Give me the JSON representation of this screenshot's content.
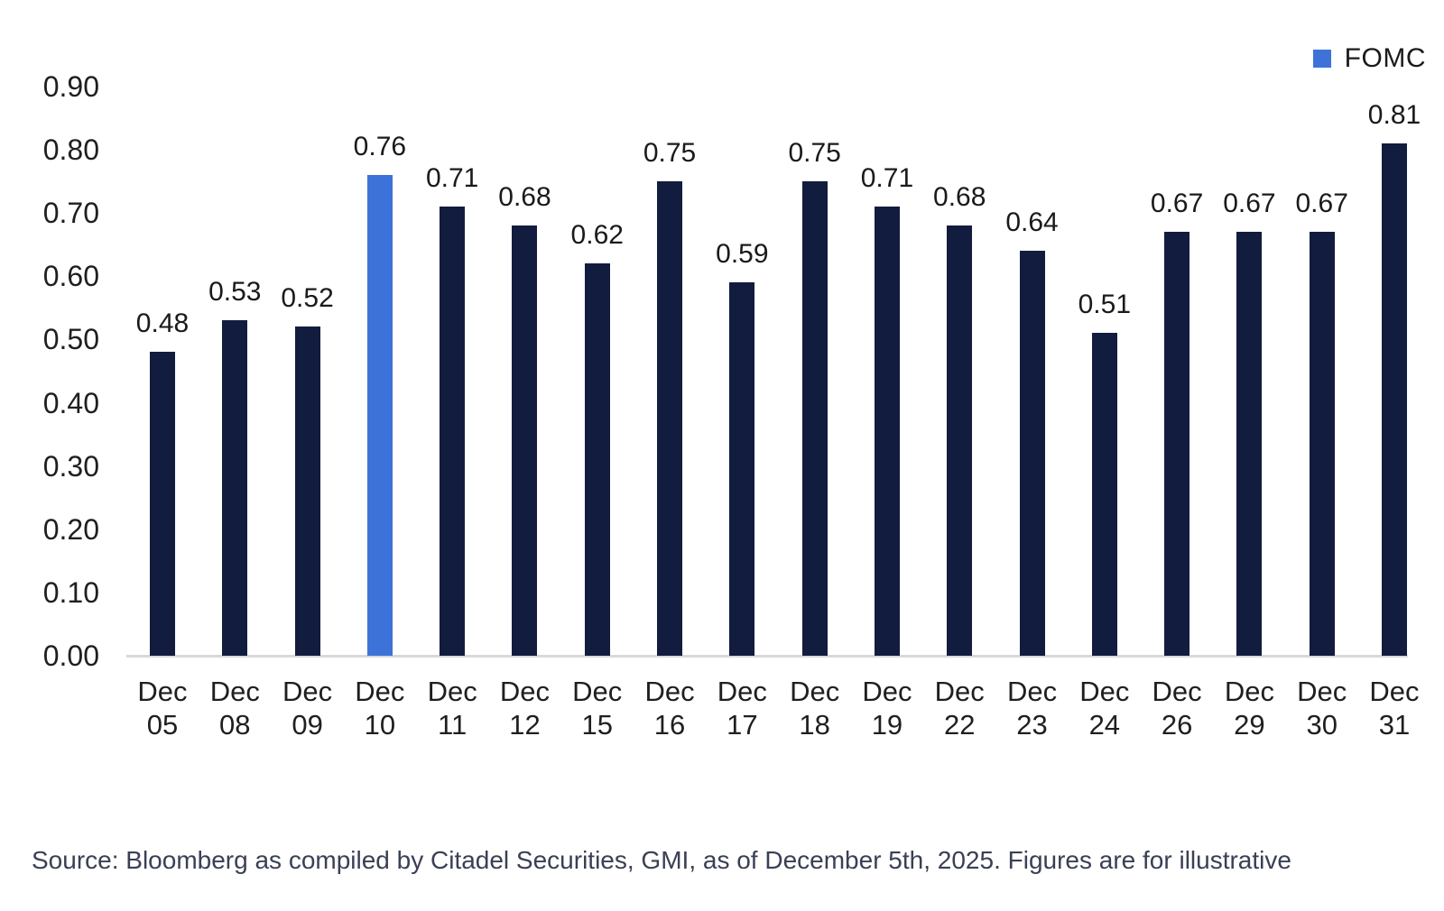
{
  "legend": {
    "items": [
      {
        "label": "FOMC",
        "color": "#3d73d8"
      }
    ],
    "position": "top-right"
  },
  "colors": {
    "bar_default": "#111c3e",
    "bar_highlight": "#3d73d8",
    "axis_line": "#d9d9d9",
    "label_text": "#1a1a1a",
    "source_text": "#3a4054",
    "background": "#ffffff"
  },
  "chart_data": {
    "type": "bar",
    "title": "",
    "xlabel": "",
    "ylabel": "",
    "categories": [
      "Dec 05",
      "Dec 08",
      "Dec 09",
      "Dec 10",
      "Dec 11",
      "Dec 12",
      "Dec 15",
      "Dec 16",
      "Dec 17",
      "Dec 18",
      "Dec 19",
      "Dec 22",
      "Dec 23",
      "Dec 24",
      "Dec 26",
      "Dec 29",
      "Dec 30",
      "Dec 31"
    ],
    "values": [
      0.48,
      0.53,
      0.52,
      0.76,
      0.71,
      0.68,
      0.62,
      0.75,
      0.59,
      0.75,
      0.71,
      0.68,
      0.64,
      0.51,
      0.67,
      0.67,
      0.67,
      0.81
    ],
    "value_label_decimals": 2,
    "highlight_index": 3,
    "highlight_meaning": "FOMC",
    "ylim": [
      0.0,
      0.9
    ],
    "yticks": [
      "0.00",
      "0.10",
      "0.20",
      "0.30",
      "0.40",
      "0.50",
      "0.60",
      "0.70",
      "0.80",
      "0.90"
    ],
    "grid": "off",
    "legend_position": "top-right"
  },
  "source": {
    "text": "Source: Bloomberg as compiled by Citadel Securities, GMI, as of December 5th, 2025. Figures are for illustrative"
  }
}
